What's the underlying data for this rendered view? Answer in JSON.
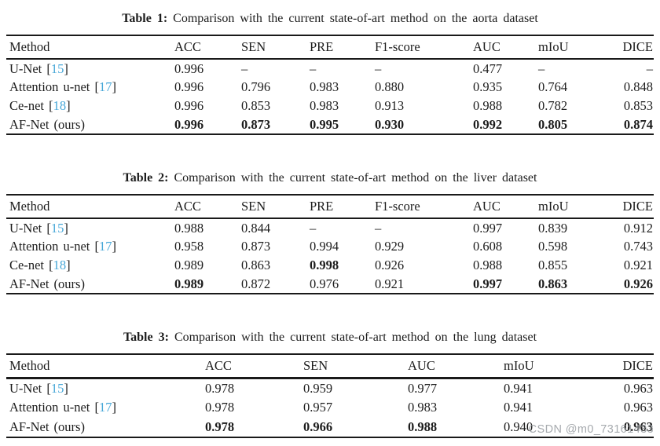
{
  "page": {
    "watermark": "CSDN @m0_73161433",
    "colors": {
      "background": "#ffffff",
      "text": "#1c1c1c",
      "rule": "#1a1a1a",
      "citation_link": "#47a7d8",
      "watermark": "#969ba0"
    }
  },
  "tables": [
    {
      "title_label": "Table 1:",
      "title_rest": " Comparison with the current state-of-art method on the aorta dataset",
      "columns": [
        "Method",
        "ACC",
        "SEN",
        "PRE",
        "F1-score",
        "AUC",
        "mIoU",
        "DICE"
      ],
      "rows": [
        {
          "method": "U-Net",
          "ref": "15",
          "values": [
            "0.996",
            "–",
            "–",
            "–",
            "0.477",
            "–",
            "–"
          ],
          "bold": [
            false,
            false,
            false,
            false,
            false,
            false,
            false
          ]
        },
        {
          "method": "Attention u-net",
          "ref": "17",
          "values": [
            "0.996",
            "0.796",
            "0.983",
            "0.880",
            "0.935",
            "0.764",
            "0.848"
          ],
          "bold": [
            false,
            false,
            false,
            false,
            false,
            false,
            false
          ]
        },
        {
          "method": "Ce-net",
          "ref": "18",
          "values": [
            "0.996",
            "0.853",
            "0.983",
            "0.913",
            "0.988",
            "0.782",
            "0.853"
          ],
          "bold": [
            false,
            false,
            false,
            false,
            false,
            false,
            false
          ]
        },
        {
          "method": "AF-Net (ours)",
          "ref": null,
          "values": [
            "0.996",
            "0.873",
            "0.995",
            "0.930",
            "0.992",
            "0.805",
            "0.874"
          ],
          "bold": [
            true,
            true,
            true,
            true,
            true,
            true,
            true
          ]
        }
      ]
    },
    {
      "title_label": "Table 2:",
      "title_rest": " Comparison with the current state-of-art method on the liver dataset",
      "columns": [
        "Method",
        "ACC",
        "SEN",
        "PRE",
        "F1-score",
        "AUC",
        "mIoU",
        "DICE"
      ],
      "rows": [
        {
          "method": "U-Net",
          "ref": "15",
          "values": [
            "0.988",
            "0.844",
            "–",
            "–",
            "0.997",
            "0.839",
            "0.912"
          ],
          "bold": [
            false,
            false,
            false,
            false,
            false,
            false,
            false
          ]
        },
        {
          "method": "Attention u-net",
          "ref": "17",
          "values": [
            "0.958",
            "0.873",
            "0.994",
            "0.929",
            "0.608",
            "0.598",
            "0.743"
          ],
          "bold": [
            false,
            false,
            false,
            false,
            false,
            false,
            false
          ]
        },
        {
          "method": "Ce-net",
          "ref": "18",
          "values": [
            "0.989",
            "0.863",
            "0.998",
            "0.926",
            "0.988",
            "0.855",
            "0.921"
          ],
          "bold": [
            false,
            false,
            true,
            false,
            false,
            false,
            false
          ]
        },
        {
          "method": "AF-Net (ours)",
          "ref": null,
          "values": [
            "0.989",
            "0.872",
            "0.976",
            "0.921",
            "0.997",
            "0.863",
            "0.926"
          ],
          "bold": [
            true,
            false,
            false,
            false,
            true,
            true,
            true
          ]
        }
      ]
    },
    {
      "title_label": "Table 3:",
      "title_rest": " Comparison with the current state-of-art method on the lung dataset",
      "columns": [
        "Method",
        "ACC",
        "SEN",
        "AUC",
        "mIoU",
        "DICE"
      ],
      "rows": [
        {
          "method": "U-Net",
          "ref": "15",
          "values": [
            "0.978",
            "0.959",
            "0.977",
            "0.941",
            "0.963"
          ],
          "bold": [
            false,
            false,
            false,
            false,
            false
          ]
        },
        {
          "method": "Attention u-net",
          "ref": "17",
          "values": [
            "0.978",
            "0.957",
            "0.983",
            "0.941",
            "0.963"
          ],
          "bold": [
            false,
            false,
            false,
            false,
            false
          ]
        },
        {
          "method": "AF-Net (ours)",
          "ref": null,
          "values": [
            "0.978",
            "0.966",
            "0.988",
            "0.940",
            "0.963"
          ],
          "bold": [
            true,
            true,
            true,
            false,
            true
          ]
        }
      ]
    }
  ]
}
